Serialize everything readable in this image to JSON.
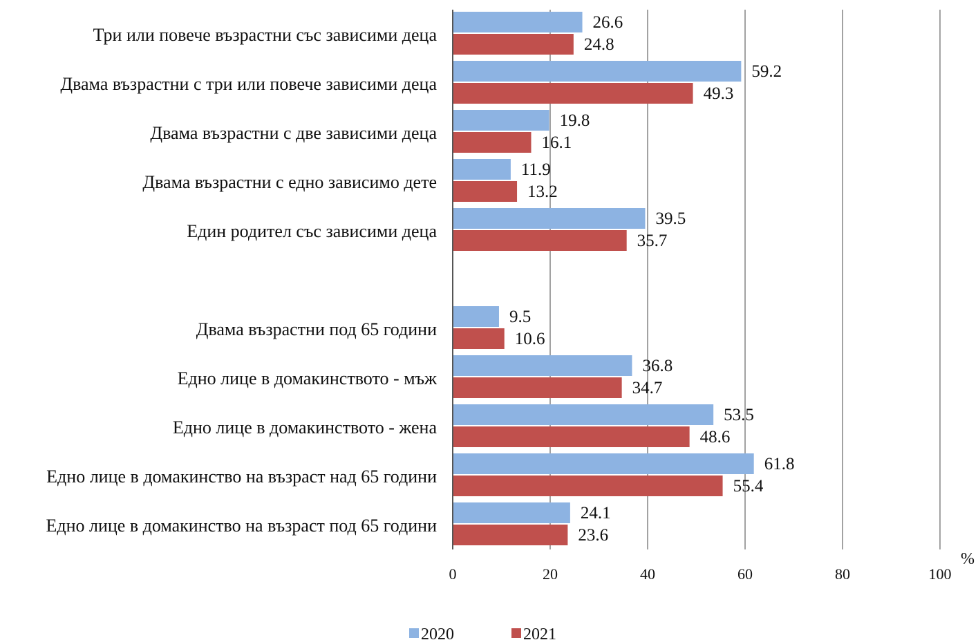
{
  "chart_data": {
    "type": "bar",
    "orientation": "horizontal",
    "categories": [
      "Три или повече възрастни със зависими деца",
      "Двама възрастни с три или повече зависими деца",
      "Двама възрастни с две зависими деца",
      "Двама възрастни с едно зависимо дете",
      "Един родител със зависими деца",
      "",
      "Двама възрастни под 65 години",
      "Едно лице в домакинството - мъж",
      "Едно лице в домакинството - жена",
      "Едно лице в домакинство на възраст над 65 години",
      "Едно лице в домакинство на възраст под 65 години"
    ],
    "series": [
      {
        "name": "2020",
        "color": "#8DB3E2",
        "values": [
          26.6,
          59.2,
          19.8,
          11.9,
          39.5,
          null,
          9.5,
          36.8,
          53.5,
          61.8,
          24.1
        ],
        "labels": [
          "26.6",
          "59.2",
          "19.8",
          "11.9",
          "39.5",
          "",
          "9.5",
          "36.8",
          "53.5",
          "61.8",
          "24.1"
        ]
      },
      {
        "name": "2021",
        "color": "#C0504D",
        "values": [
          24.8,
          49.3,
          16.1,
          13.2,
          35.7,
          null,
          10.6,
          34.7,
          48.6,
          55.4,
          23.6
        ],
        "labels": [
          "24.8",
          "49.3",
          "16.1",
          "13.2",
          "35.7",
          "",
          "10.6",
          "34.7",
          "48.6",
          "55.4",
          "23.6"
        ]
      }
    ],
    "xlim": [
      0,
      100
    ],
    "xticks": [
      0,
      20,
      40,
      60,
      80,
      100
    ],
    "xtick_labels": [
      "0",
      "20",
      "40",
      "60",
      "80",
      "100"
    ],
    "unit": "%",
    "grid": "vertical",
    "legend": "bottom"
  }
}
